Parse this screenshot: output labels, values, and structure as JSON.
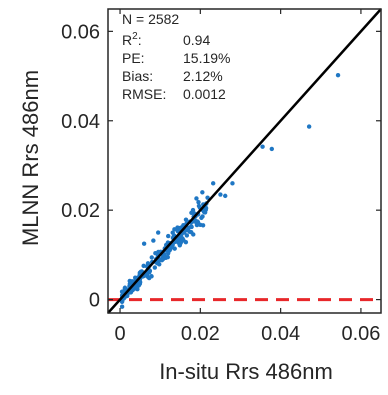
{
  "chart_data": {
    "type": "scatter",
    "title": "",
    "xlabel": "In-situ Rrs 486nm",
    "ylabel": "MLNN Rrs 486nm",
    "xlim": [
      -0.003,
      0.065
    ],
    "ylim": [
      -0.003,
      0.065
    ],
    "grid": false,
    "legend": "none",
    "x_ticks": [
      0,
      0.02,
      0.04,
      0.06
    ],
    "y_ticks": [
      0,
      0.02,
      0.04,
      0.06
    ],
    "x_tick_labels": [
      "0",
      "0.02",
      "0.04",
      "0.06"
    ],
    "y_tick_labels": [
      "0",
      "0.02",
      "0.04",
      "0.06"
    ],
    "n_points_total": 2582,
    "reference_lines": [
      {
        "kind": "one-to-one",
        "color": "#000000",
        "style": "solid"
      },
      {
        "kind": "horizontal",
        "y": 0,
        "color": "#e8272a",
        "style": "dashed"
      }
    ],
    "point_color": "#1f77c4",
    "stats": {
      "n": {
        "label": "N = 2582"
      },
      "r2": {
        "label_base": "R",
        "label_sup": "2",
        "label_colon": ":",
        "value": "0.94"
      },
      "pe": {
        "label": "PE:",
        "value": "15.19%"
      },
      "bias": {
        "label": "Bias:",
        "value": "2.12%"
      },
      "rmse": {
        "label": "RMSE:",
        "value": "0.0012"
      }
    },
    "outliers": [
      {
        "x": 0.0543,
        "y": 0.0502
      },
      {
        "x": 0.0471,
        "y": 0.0387
      },
      {
        "x": 0.0378,
        "y": 0.0337
      },
      {
        "x": 0.0355,
        "y": 0.0342
      },
      {
        "x": 0.028,
        "y": 0.026
      },
      {
        "x": 0.0262,
        "y": 0.0232
      },
      {
        "x": 0.0232,
        "y": 0.026
      },
      {
        "x": 0.025,
        "y": 0.0235
      },
      {
        "x": 0.0218,
        "y": 0.0228
      },
      {
        "x": 0.0205,
        "y": 0.024
      },
      {
        "x": 0.0215,
        "y": 0.0215
      },
      {
        "x": 0.006,
        "y": 0.0125
      },
      {
        "x": 0.0083,
        "y": 0.0132
      },
      {
        "x": 0.012,
        "y": 0.0142
      },
      {
        "x": 0.0095,
        "y": 0.015
      }
    ],
    "dense_cluster": {
      "x_range": [
        0.0005,
        0.0215
      ],
      "slope": 0.97,
      "spread": 0.0012,
      "count": 260
    }
  }
}
